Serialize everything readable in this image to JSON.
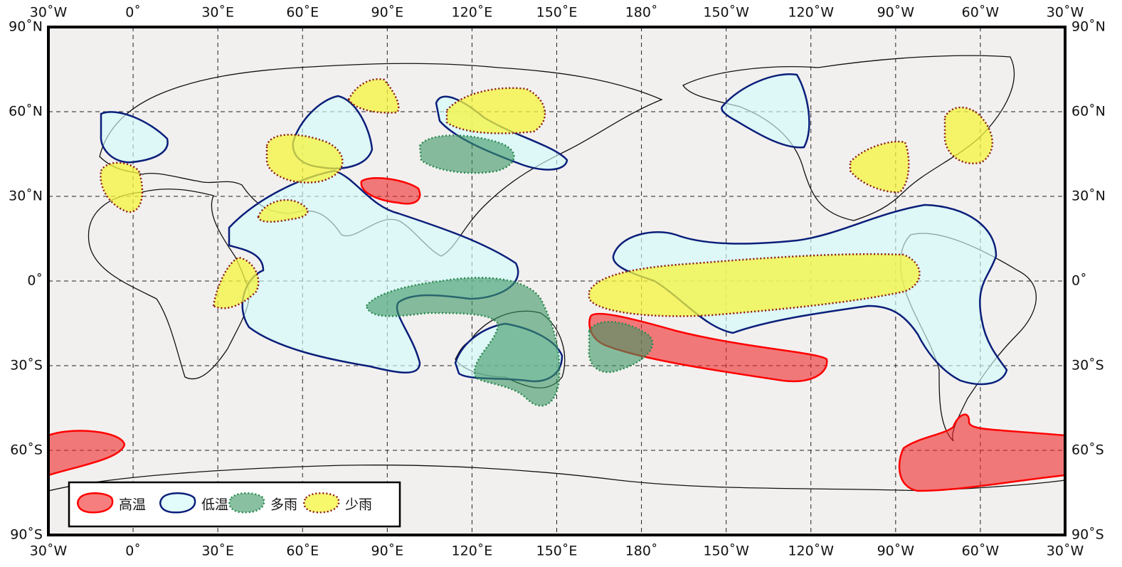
{
  "lon_labels": [
    "30˚W",
    "0˚",
    "30˚E",
    "60˚E",
    "90˚E",
    "120˚E",
    "150˚E",
    "180˚",
    "150˚W",
    "120˚W",
    "90˚W",
    "60˚W",
    "30˚W"
  ],
  "lat_labels": [
    "90˚N",
    "60˚N",
    "30˚N",
    "0˚",
    "30˚S",
    "60˚S",
    "90˚S"
  ],
  "legend": [
    "高温",
    "低温",
    "多雨",
    "少雨"
  ]
}
